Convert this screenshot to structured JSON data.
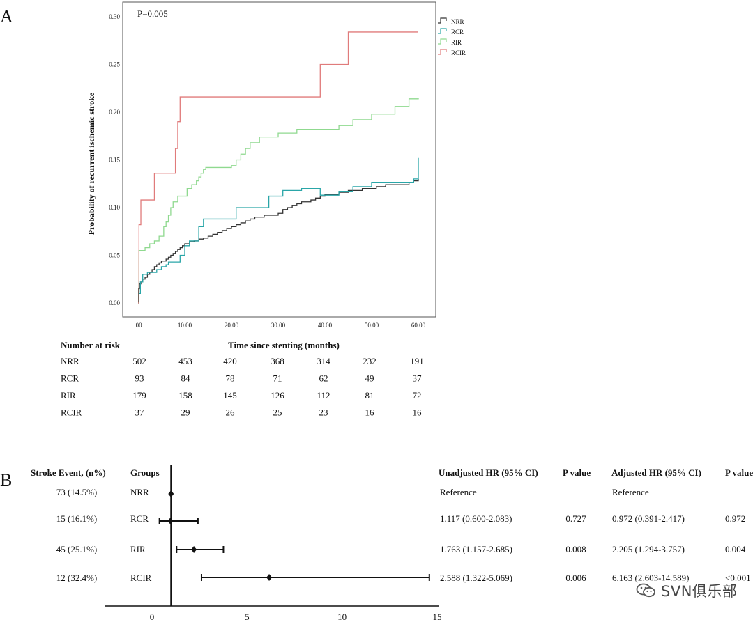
{
  "panel_a": {
    "letter": "A",
    "p_label": "P=0.005",
    "number_at_risk_heading": "Number at risk",
    "risk_groups": [
      {
        "name": "NRR",
        "values": [
          "502",
          "453",
          "420",
          "368",
          "314",
          "232",
          "191"
        ]
      },
      {
        "name": "RCR",
        "values": [
          "93",
          "84",
          "78",
          "71",
          "62",
          "49",
          "37"
        ]
      },
      {
        "name": "RIR",
        "values": [
          "179",
          "158",
          "145",
          "126",
          "112",
          "81",
          "72"
        ]
      },
      {
        "name": "RCIR",
        "values": [
          "37",
          "29",
          "26",
          "25",
          "23",
          "16",
          "16"
        ]
      }
    ]
  },
  "panel_b": {
    "letter": "B",
    "headers": {
      "events": "Stroke Event, (n%)",
      "groups": "Groups",
      "unadj_hr": "Unadjusted HR (95% CI)",
      "p1": "P value",
      "adj_hr": "Adjusted HR  (95% CI)",
      "p2": "P value"
    },
    "rows": [
      {
        "events": "73 (14.5%)",
        "group": "NRR",
        "unadj": "Reference",
        "p1": "",
        "adj": "Reference",
        "p2": ""
      },
      {
        "events": "15 (16.1%)",
        "group": "RCR",
        "unadj": "1.117 (0.600-2.083)",
        "p1": "0.727",
        "adj": "0.972 (0.391-2.417)",
        "p2": "0.972"
      },
      {
        "events": "45 (25.1%)",
        "group": "RIR",
        "unadj": "1.763 (1.157-2.685)",
        "p1": "0.008",
        "adj": "2.205 (1.294-3.757)",
        "p2": "0.004"
      },
      {
        "events": "12 (32.4%)",
        "group": "RCIR",
        "unadj": "2.588 (1.322-5.069)",
        "p1": "0.006",
        "adj": "6.163 (2.603-14.589)",
        "p2": "<0.001"
      }
    ]
  },
  "watermark": {
    "text": "SVN俱乐部",
    "icon": "wechat-icon"
  },
  "chart_data": [
    {
      "type": "line",
      "subtype": "kaplan-meier step",
      "xlabel": "Time since stenting (months)",
      "ylabel": "Probability of recurrent ischemic stroke",
      "xlim": [
        0,
        60
      ],
      "ylim": [
        0,
        0.3
      ],
      "x_ticks": [
        ".00",
        "10.00",
        "20.00",
        "30.00",
        "40.00",
        "50.00",
        "60.00"
      ],
      "y_ticks": [
        "0.00",
        "0.05",
        "0.10",
        "0.15",
        "0.20",
        "0.25",
        "0.30"
      ],
      "grid": false,
      "legend_position": "top-right outside",
      "series": [
        {
          "name": "NRR",
          "color": "#333333",
          "points": [
            [
              0,
              0
            ],
            [
              0.1,
              0.015
            ],
            [
              0.3,
              0.02
            ],
            [
              0.6,
              0.022
            ],
            [
              1.0,
              0.025
            ],
            [
              1.5,
              0.027
            ],
            [
              2,
              0.03
            ],
            [
              2.5,
              0.032
            ],
            [
              3,
              0.035
            ],
            [
              3.5,
              0.038
            ],
            [
              4,
              0.04
            ],
            [
              4.5,
              0.042
            ],
            [
              5,
              0.044
            ],
            [
              6,
              0.046
            ],
            [
              6.5,
              0.048
            ],
            [
              7,
              0.05
            ],
            [
              7.5,
              0.052
            ],
            [
              8,
              0.054
            ],
            [
              8.5,
              0.056
            ],
            [
              9,
              0.058
            ],
            [
              9.5,
              0.06
            ],
            [
              10,
              0.062
            ],
            [
              11,
              0.064
            ],
            [
              12,
              0.065
            ],
            [
              13,
              0.067
            ],
            [
              14,
              0.068
            ],
            [
              15,
              0.07
            ],
            [
              16,
              0.072
            ],
            [
              17,
              0.074
            ],
            [
              18,
              0.076
            ],
            [
              19,
              0.078
            ],
            [
              20,
              0.08
            ],
            [
              21,
              0.082
            ],
            [
              22,
              0.084
            ],
            [
              23,
              0.086
            ],
            [
              24,
              0.088
            ],
            [
              25,
              0.09
            ],
            [
              27,
              0.092
            ],
            [
              30,
              0.094
            ],
            [
              31,
              0.098
            ],
            [
              32,
              0.1
            ],
            [
              33,
              0.102
            ],
            [
              34,
              0.104
            ],
            [
              35,
              0.106
            ],
            [
              37,
              0.108
            ],
            [
              38,
              0.11
            ],
            [
              39,
              0.112
            ],
            [
              40,
              0.114
            ],
            [
              43,
              0.116
            ],
            [
              45,
              0.118
            ],
            [
              48,
              0.12
            ],
            [
              51,
              0.122
            ],
            [
              53,
              0.124
            ],
            [
              58,
              0.126
            ],
            [
              59,
              0.128
            ],
            [
              60,
              0.13
            ]
          ]
        },
        {
          "name": "RCR",
          "color": "#2aa6a8",
          "points": [
            [
              0,
              0
            ],
            [
              0.2,
              0.01
            ],
            [
              0.5,
              0.022
            ],
            [
              1,
              0.03
            ],
            [
              2,
              0.032
            ],
            [
              4,
              0.035
            ],
            [
              5,
              0.038
            ],
            [
              6,
              0.04
            ],
            [
              6.5,
              0.043
            ],
            [
              9,
              0.05
            ],
            [
              10,
              0.06
            ],
            [
              11,
              0.065
            ],
            [
              13,
              0.08
            ],
            [
              14,
              0.088
            ],
            [
              21,
              0.1
            ],
            [
              28,
              0.112
            ],
            [
              31,
              0.118
            ],
            [
              35,
              0.12
            ],
            [
              39,
              0.113
            ],
            [
              43,
              0.117
            ],
            [
              46,
              0.122
            ],
            [
              50,
              0.126
            ],
            [
              59,
              0.13
            ],
            [
              60,
              0.152
            ]
          ]
        },
        {
          "name": "RIR",
          "color": "#8fd98f",
          "points": [
            [
              0,
              0
            ],
            [
              0.2,
              0.055
            ],
            [
              1.5,
              0.058
            ],
            [
              2.5,
              0.062
            ],
            [
              3.5,
              0.065
            ],
            [
              4.5,
              0.07
            ],
            [
              5.5,
              0.08
            ],
            [
              6,
              0.085
            ],
            [
              6.5,
              0.092
            ],
            [
              7,
              0.1
            ],
            [
              7.5,
              0.106
            ],
            [
              8.5,
              0.112
            ],
            [
              10.5,
              0.12
            ],
            [
              11.5,
              0.124
            ],
            [
              12.5,
              0.128
            ],
            [
              13,
              0.132
            ],
            [
              13.5,
              0.136
            ],
            [
              14,
              0.14
            ],
            [
              14.5,
              0.142
            ],
            [
              20,
              0.144
            ],
            [
              21,
              0.15
            ],
            [
              22,
              0.156
            ],
            [
              23,
              0.162
            ],
            [
              24,
              0.168
            ],
            [
              26,
              0.174
            ],
            [
              30,
              0.178
            ],
            [
              34,
              0.182
            ],
            [
              43,
              0.186
            ],
            [
              46,
              0.192
            ],
            [
              50,
              0.198
            ],
            [
              55,
              0.206
            ],
            [
              58,
              0.214
            ],
            [
              60,
              0.215
            ]
          ]
        },
        {
          "name": "RCIR",
          "color": "#e07b7b",
          "points": [
            [
              0,
              0
            ],
            [
              0.2,
              0.082
            ],
            [
              0.6,
              0.108
            ],
            [
              3.5,
              0.136
            ],
            [
              8,
              0.162
            ],
            [
              8.5,
              0.19
            ],
            [
              9,
              0.216
            ],
            [
              39,
              0.25
            ],
            [
              45,
              0.284
            ],
            [
              60,
              0.284
            ]
          ]
        }
      ]
    },
    {
      "type": "forest",
      "x_ticks": [
        "0",
        "5",
        "10",
        "15"
      ],
      "xlim": [
        0,
        15
      ],
      "reference_line": 1,
      "series": [
        {
          "name": "NRR",
          "hr": 1.0,
          "lo": 1.0,
          "hi": 1.0
        },
        {
          "name": "RCR",
          "hr": 0.972,
          "lo": 0.391,
          "hi": 2.417
        },
        {
          "name": "RIR",
          "hr": 2.205,
          "lo": 1.294,
          "hi": 3.757
        },
        {
          "name": "RCIR",
          "hr": 6.163,
          "lo": 2.603,
          "hi": 14.589
        }
      ]
    }
  ]
}
